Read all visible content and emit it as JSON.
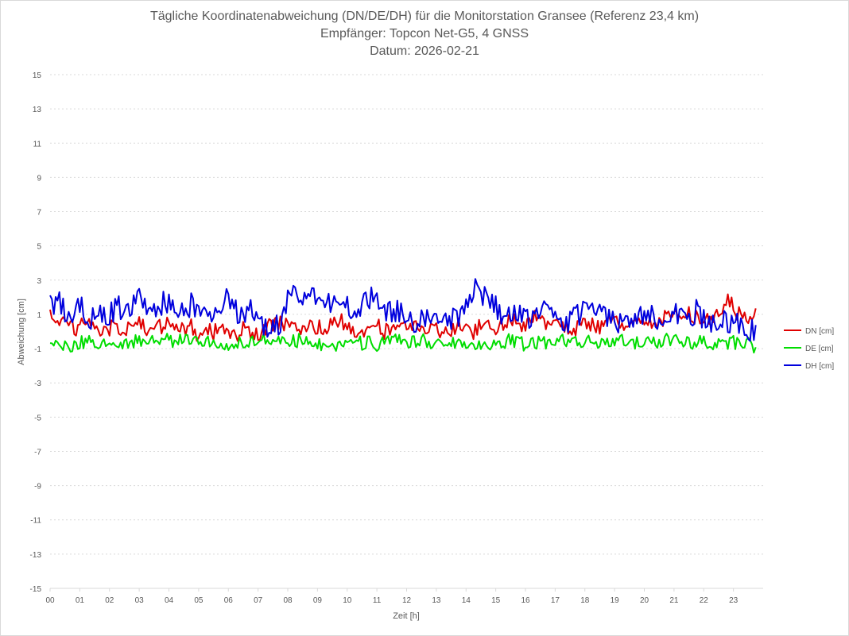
{
  "chart_data": {
    "type": "line",
    "title": "Tägliche Koordinatenabweichung (DN/DE/DH) für die Monitorstation Gransee (Referenz 23,4 km)",
    "subtitle": "Empfänger: Topcon Net-G5, 4 GNSS",
    "date_label": "Datum: 2026-02-21",
    "xlabel": "Zeit [h]",
    "ylabel": "Abweichung [cm]",
    "xlim": [
      0,
      24
    ],
    "ylim": [
      -15,
      15
    ],
    "x_ticks": [
      "00",
      "01",
      "02",
      "03",
      "04",
      "05",
      "06",
      "07",
      "08",
      "09",
      "10",
      "11",
      "12",
      "13",
      "14",
      "15",
      "16",
      "17",
      "18",
      "19",
      "20",
      "21",
      "22",
      "23"
    ],
    "y_ticks": [
      15,
      13,
      11,
      9,
      7,
      5,
      3,
      1,
      -1,
      -3,
      -5,
      -7,
      -9,
      -11,
      -13,
      -15
    ],
    "grid": true,
    "legend_position": "right",
    "sample_step_h": 0.25,
    "series": [
      {
        "name": "DN [cm]",
        "color": "#e00000",
        "values": [
          0.9,
          0.5,
          0.4,
          0.3,
          0.2,
          0.5,
          0.3,
          0.0,
          0.2,
          0.4,
          0.1,
          0.3,
          0.5,
          0.2,
          0.0,
          0.3,
          0.4,
          0.1,
          0.2,
          0.3,
          -0.2,
          0.0,
          -0.1,
          0.2,
          0.0,
          -0.3,
          0.1,
          0.0,
          -0.2,
          0.2,
          0.4,
          0.5,
          0.3,
          0.0,
          0.2,
          0.4,
          0.3,
          0.1,
          0.4,
          0.6,
          0.3,
          0.0,
          -0.2,
          0.1,
          0.3,
          0.0,
          0.2,
          0.4,
          0.3,
          0.1,
          0.2,
          0.3,
          0.0,
          0.2,
          0.1,
          0.3,
          0.2,
          0.0,
          0.3,
          0.2,
          0.0,
          0.4,
          0.8,
          0.5,
          0.3,
          0.7,
          0.9,
          0.5,
          0.3,
          0.2,
          0.0,
          0.3,
          0.5,
          0.4,
          0.2,
          0.6,
          0.8,
          0.4,
          0.2,
          0.6,
          0.7,
          0.4,
          0.6,
          0.8,
          0.7,
          0.9,
          1.2,
          0.8,
          0.5,
          0.9,
          1.1,
          2.0,
          1.4,
          0.8,
          0.6,
          0.9
        ],
        "noise": 0.5
      },
      {
        "name": "DE [cm]",
        "color": "#00dd00",
        "values": [
          -0.8,
          -0.7,
          -0.8,
          -0.9,
          -0.7,
          -0.5,
          -0.6,
          -0.7,
          -0.8,
          -0.6,
          -0.7,
          -0.6,
          -0.5,
          -0.6,
          -0.5,
          -0.6,
          -0.5,
          -0.6,
          -0.5,
          -0.4,
          -0.6,
          -0.5,
          -0.7,
          -0.8,
          -0.7,
          -0.6,
          -0.8,
          -0.7,
          -0.5,
          -0.4,
          -0.5,
          -0.6,
          -0.5,
          -0.6,
          -0.4,
          -0.5,
          -0.7,
          -0.8,
          -0.9,
          -0.7,
          -0.6,
          -0.5,
          -0.7,
          -0.6,
          -0.8,
          -0.7,
          -0.6,
          -0.5,
          -0.7,
          -0.6,
          -0.5,
          -0.6,
          -0.7,
          -0.8,
          -0.6,
          -0.7,
          -0.6,
          -0.8,
          -0.7,
          -0.8,
          -0.7,
          -0.6,
          -0.5,
          -0.6,
          -0.8,
          -0.7,
          -0.6,
          -0.7,
          -0.6,
          -0.5,
          -0.6,
          -0.7,
          -0.6,
          -0.5,
          -0.7,
          -0.8,
          -0.6,
          -0.5,
          -0.6,
          -0.7,
          -0.6,
          -0.5,
          -0.6,
          -0.4,
          -0.5,
          -0.6,
          -0.7,
          -0.6,
          -0.5,
          -0.7,
          -0.6,
          -0.7,
          -0.6,
          -0.8,
          -0.7,
          -0.9
        ],
        "noise": 0.4
      },
      {
        "name": "DH [cm]",
        "color": "#0000dd",
        "values": [
          1.5,
          1.8,
          1.2,
          0.8,
          1.5,
          1.0,
          0.6,
          1.2,
          1.0,
          1.5,
          1.2,
          1.4,
          2.0,
          1.5,
          1.3,
          1.6,
          1.8,
          1.4,
          1.2,
          1.6,
          1.5,
          0.8,
          1.0,
          1.6,
          2.0,
          1.2,
          1.0,
          1.5,
          0.6,
          0.3,
          0.2,
          0.5,
          2.0,
          2.5,
          2.2,
          1.8,
          2.0,
          1.5,
          1.8,
          1.6,
          1.4,
          1.2,
          1.5,
          2.0,
          1.8,
          1.3,
          1.2,
          1.1,
          0.9,
          0.6,
          0.8,
          0.5,
          0.4,
          0.3,
          0.6,
          1.0,
          1.2,
          2.5,
          2.2,
          2.1,
          1.4,
          0.8,
          1.0,
          1.1,
          0.9,
          0.8,
          1.2,
          1.0,
          0.7,
          0.4,
          0.6,
          1.0,
          1.3,
          1.1,
          0.9,
          1.0,
          0.6,
          0.5,
          0.8,
          0.6,
          0.9,
          1.1,
          0.7,
          1.0,
          1.3,
          1.0,
          0.7,
          1.2,
          0.8,
          0.4,
          0.6,
          0.5,
          0.6,
          0.3,
          0.1,
          0.0
        ],
        "noise": 0.7
      }
    ]
  }
}
